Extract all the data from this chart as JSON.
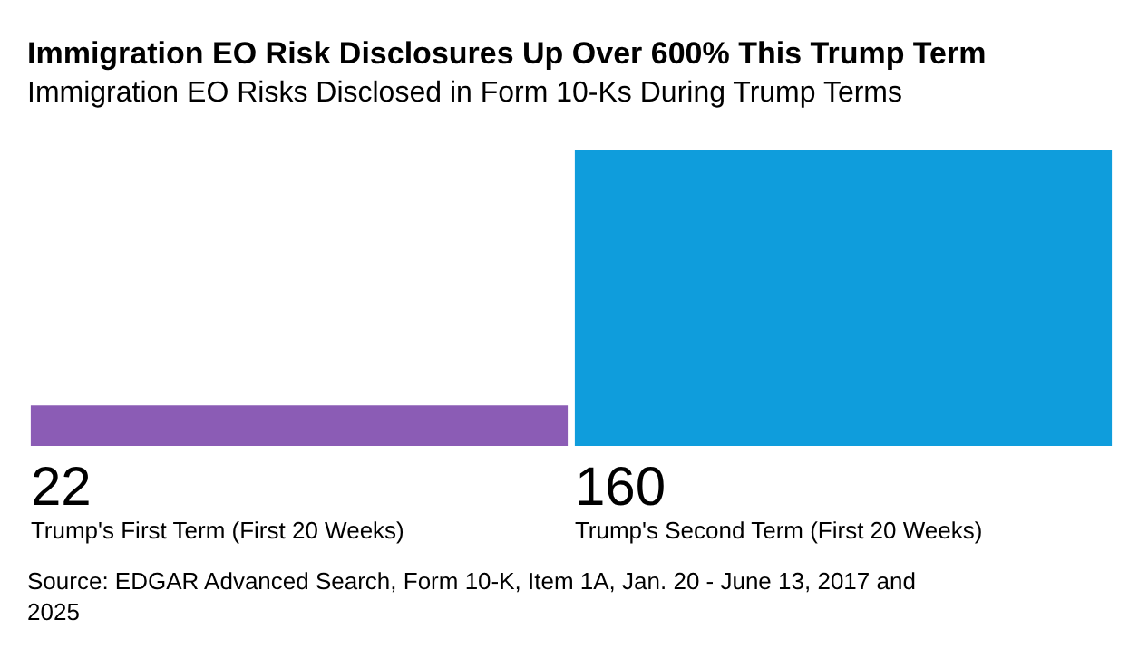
{
  "chart_data": {
    "type": "bar",
    "title": "Immigration EO Risk Disclosures Up Over 600% This Trump Term",
    "subtitle": "Immigration EO Risks Disclosed in Form 10-Ks During Trump Terms",
    "categories": [
      "Trump's First Term (First 20 Weeks)",
      "Trump's Second Term (First 20 Weeks)"
    ],
    "values": [
      22,
      160
    ],
    "colors": [
      "#8b5cb5",
      "#0f9ddc"
    ],
    "data_labels": true,
    "annotations": [
      "Source: EDGAR Advanced Search, Form 10-K, Item 1A, Jan. 20 - June 13, 2017 and 2025"
    ]
  }
}
